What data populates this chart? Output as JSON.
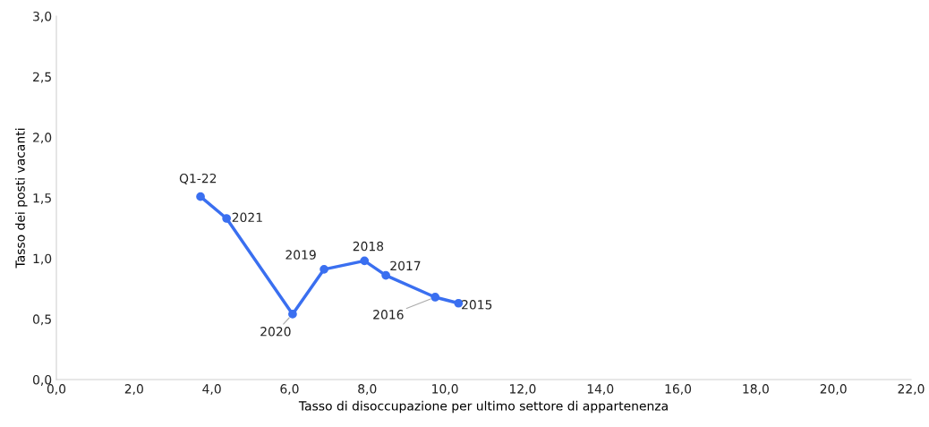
{
  "chart_data": {
    "type": "line",
    "xlabel": "Tasso di disoccupazione per ultimo settore di appartenenza",
    "ylabel": "Tasso dei posti vacanti",
    "x": [
      3.71,
      4.38,
      6.08,
      6.89,
      7.93,
      8.48,
      9.75,
      10.35
    ],
    "series": [
      {
        "color": "#3a6ff0",
        "values": [
          1.51,
          1.33,
          0.54,
          0.91,
          0.98,
          0.86,
          0.68,
          0.63
        ]
      }
    ],
    "marker": "circle",
    "line_style": "solid",
    "grid": false,
    "legend": false,
    "xlim": [
      0,
      22
    ],
    "ylim": [
      0,
      3
    ],
    "xticks": [
      {
        "value": 0,
        "label": "0,0"
      },
      {
        "value": 2,
        "label": "2,0"
      },
      {
        "value": 4,
        "label": "4,0"
      },
      {
        "value": 6,
        "label": "6,0"
      },
      {
        "value": 8,
        "label": "8,0"
      },
      {
        "value": 10,
        "label": "10,0"
      },
      {
        "value": 12,
        "label": "12,0"
      },
      {
        "value": 14,
        "label": "14,0"
      },
      {
        "value": 16,
        "label": "16,0"
      },
      {
        "value": 18,
        "label": "18,0"
      },
      {
        "value": 20,
        "label": "20,0"
      },
      {
        "value": 22,
        "label": "22,0"
      }
    ],
    "yticks": [
      {
        "value": 0,
        "label": "0,0"
      },
      {
        "value": 0.5,
        "label": "0,5"
      },
      {
        "value": 1,
        "label": "1,0"
      },
      {
        "value": 1.5,
        "label": "1,5"
      },
      {
        "value": 2,
        "label": "2,0"
      },
      {
        "value": 2.5,
        "label": "2,5"
      },
      {
        "value": 3,
        "label": "3,0"
      }
    ],
    "annotations": [
      {
        "text": "Q1-22",
        "x": 3.71,
        "y": 1.51
      },
      {
        "text": "2021",
        "x": 4.38,
        "y": 1.33
      },
      {
        "text": "2020",
        "x": 6.08,
        "y": 0.54
      },
      {
        "text": "2019",
        "x": 6.89,
        "y": 0.91
      },
      {
        "text": "2018",
        "x": 7.93,
        "y": 0.98
      },
      {
        "text": "2017",
        "x": 8.48,
        "y": 0.86
      },
      {
        "text": "2016",
        "x": 9.75,
        "y": 0.68
      },
      {
        "text": "2015",
        "x": 10.35,
        "y": 0.63
      }
    ]
  }
}
